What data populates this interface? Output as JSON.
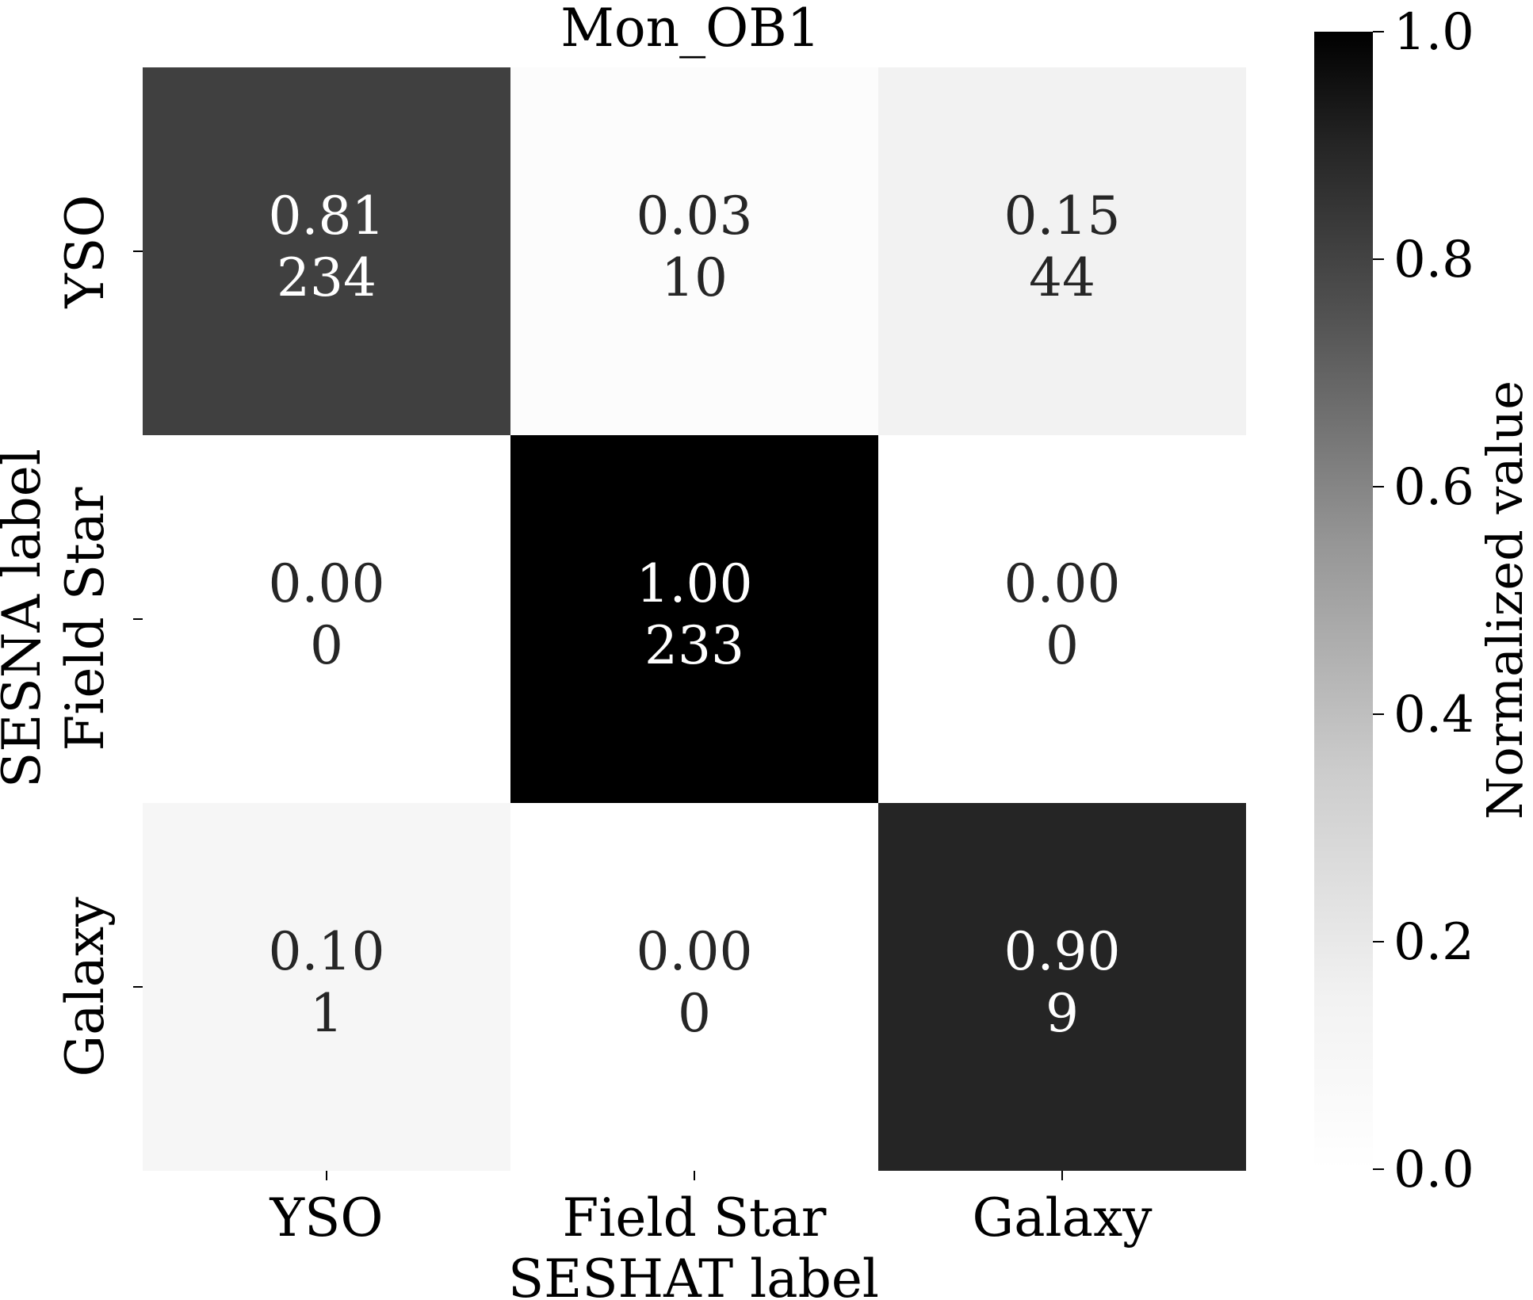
{
  "chart_data": {
    "type": "heatmap",
    "title": "Mon_OB1",
    "xlabel": "SESHAT label",
    "ylabel": "SESNA label",
    "x_categories": [
      "YSO",
      "Field Star",
      "Galaxy"
    ],
    "y_categories": [
      "YSO",
      "Field Star",
      "Galaxy"
    ],
    "values": [
      [
        0.81,
        0.03,
        0.15
      ],
      [
        0.0,
        1.0,
        0.0
      ],
      [
        0.1,
        0.0,
        0.9
      ]
    ],
    "value_labels": [
      [
        "0.81",
        "0.03",
        "0.15"
      ],
      [
        "0.00",
        "1.00",
        "0.00"
      ],
      [
        "0.10",
        "0.00",
        "0.90"
      ]
    ],
    "counts": [
      [
        "234",
        "10",
        "44"
      ],
      [
        "0",
        "233",
        "0"
      ],
      [
        "1",
        "0",
        "9"
      ]
    ],
    "colormap": "Greys",
    "color_low": "#ffffff",
    "color_high": "#000000",
    "vmin": 0.0,
    "vmax": 1.0,
    "colorbar": {
      "label": "Normalized value",
      "ticks": [
        0.0,
        0.2,
        0.4,
        0.6,
        0.8,
        1.0
      ],
      "tick_labels": [
        "0.0",
        "0.2",
        "0.4",
        "0.6",
        "0.8",
        "1.0"
      ]
    }
  }
}
